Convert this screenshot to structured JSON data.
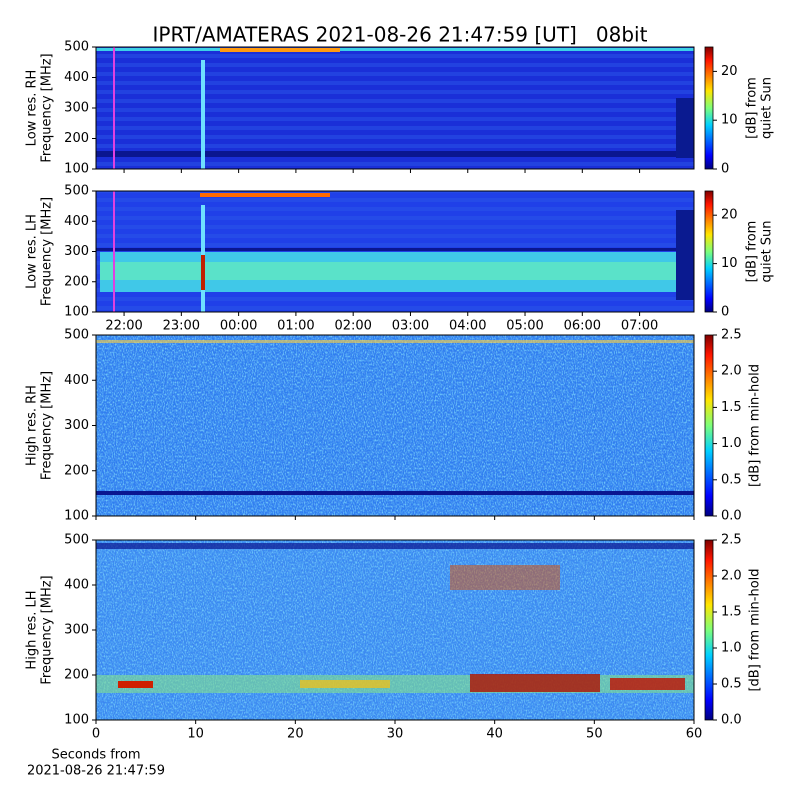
{
  "title": "IPRT/AMATERAS 2021-08-26 21:47:59 [UT]   08bit",
  "chart_data": [
    {
      "type": "heatmap",
      "colormap": "jet",
      "ylabel": [
        "Low res. RH",
        "Frequency [MHz]"
      ],
      "ylim": [
        100,
        500
      ],
      "yticks": [
        100,
        200,
        300,
        400,
        500
      ],
      "xlim": [
        21.51,
        31.95
      ],
      "xticks": [
        22,
        23,
        24,
        25,
        26,
        27,
        28,
        29,
        30,
        31
      ],
      "show_xticklabels": false,
      "colorbar": {
        "lim": [
          0,
          25
        ],
        "ticks": [
          0,
          10,
          20
        ],
        "label": [
          "[dB] from",
          "quiet Sun"
        ]
      }
    },
    {
      "type": "heatmap",
      "colormap": "jet",
      "ylabel": [
        "Low res. LH",
        "Frequency [MHz]"
      ],
      "ylim": [
        100,
        500
      ],
      "yticks": [
        100,
        200,
        300,
        400,
        500
      ],
      "xlim": [
        21.51,
        31.95
      ],
      "xticks": [
        {
          "value": 22,
          "label": "22:00"
        },
        {
          "value": 23,
          "label": "23:00"
        },
        {
          "value": 24,
          "label": "00:00"
        },
        {
          "value": 25,
          "label": "01:00"
        },
        {
          "value": 26,
          "label": "02:00"
        },
        {
          "value": 27,
          "label": "03:00"
        },
        {
          "value": 28,
          "label": "04:00"
        },
        {
          "value": 29,
          "label": "05:00"
        },
        {
          "value": 30,
          "label": "06:00"
        },
        {
          "value": 31,
          "label": "07:00"
        }
      ],
      "show_xticklabels": true,
      "colorbar": {
        "lim": [
          0,
          25
        ],
        "ticks": [
          0,
          10,
          20
        ],
        "label": [
          "[dB] from",
          "quiet Sun"
        ]
      }
    },
    {
      "type": "heatmap",
      "colormap": "jet",
      "ylabel": [
        "High res. RH",
        "Frequency [MHz]"
      ],
      "ylim": [
        100,
        500
      ],
      "yticks": [
        100,
        200,
        300,
        400,
        500
      ],
      "xlim": [
        0,
        60
      ],
      "xticks": [
        0,
        10,
        20,
        30,
        40,
        50,
        60
      ],
      "show_xticklabels": false,
      "colorbar": {
        "lim": [
          0,
          2.5
        ],
        "ticks": [
          {
            "value": 0,
            "label": "0.0"
          },
          0.5,
          {
            "value": 1,
            "label": "1.0"
          },
          1.5,
          {
            "value": 2,
            "label": "2.0"
          },
          2.5
        ],
        "label": [
          "[dB] from min-hold"
        ]
      }
    },
    {
      "type": "heatmap",
      "colormap": "jet",
      "ylabel": [
        "High res. LH",
        "Frequency [MHz]"
      ],
      "ylim": [
        100,
        500
      ],
      "yticks": [
        100,
        200,
        300,
        400,
        500
      ],
      "xlim": [
        0,
        60
      ],
      "xticks": [
        0,
        10,
        20,
        30,
        40,
        50,
        60
      ],
      "show_xticklabels": true,
      "xlabel": [
        "Seconds from",
        "2021-08-26 21:47:59"
      ],
      "colorbar": {
        "lim": [
          0,
          2.5
        ],
        "ticks": [
          {
            "value": 0,
            "label": "0.0"
          },
          0.5,
          {
            "value": 1,
            "label": "1.0"
          },
          1.5,
          {
            "value": 2,
            "label": "2.0"
          },
          2.5
        ],
        "label": [
          "[dB] from min-hold"
        ]
      }
    }
  ]
}
